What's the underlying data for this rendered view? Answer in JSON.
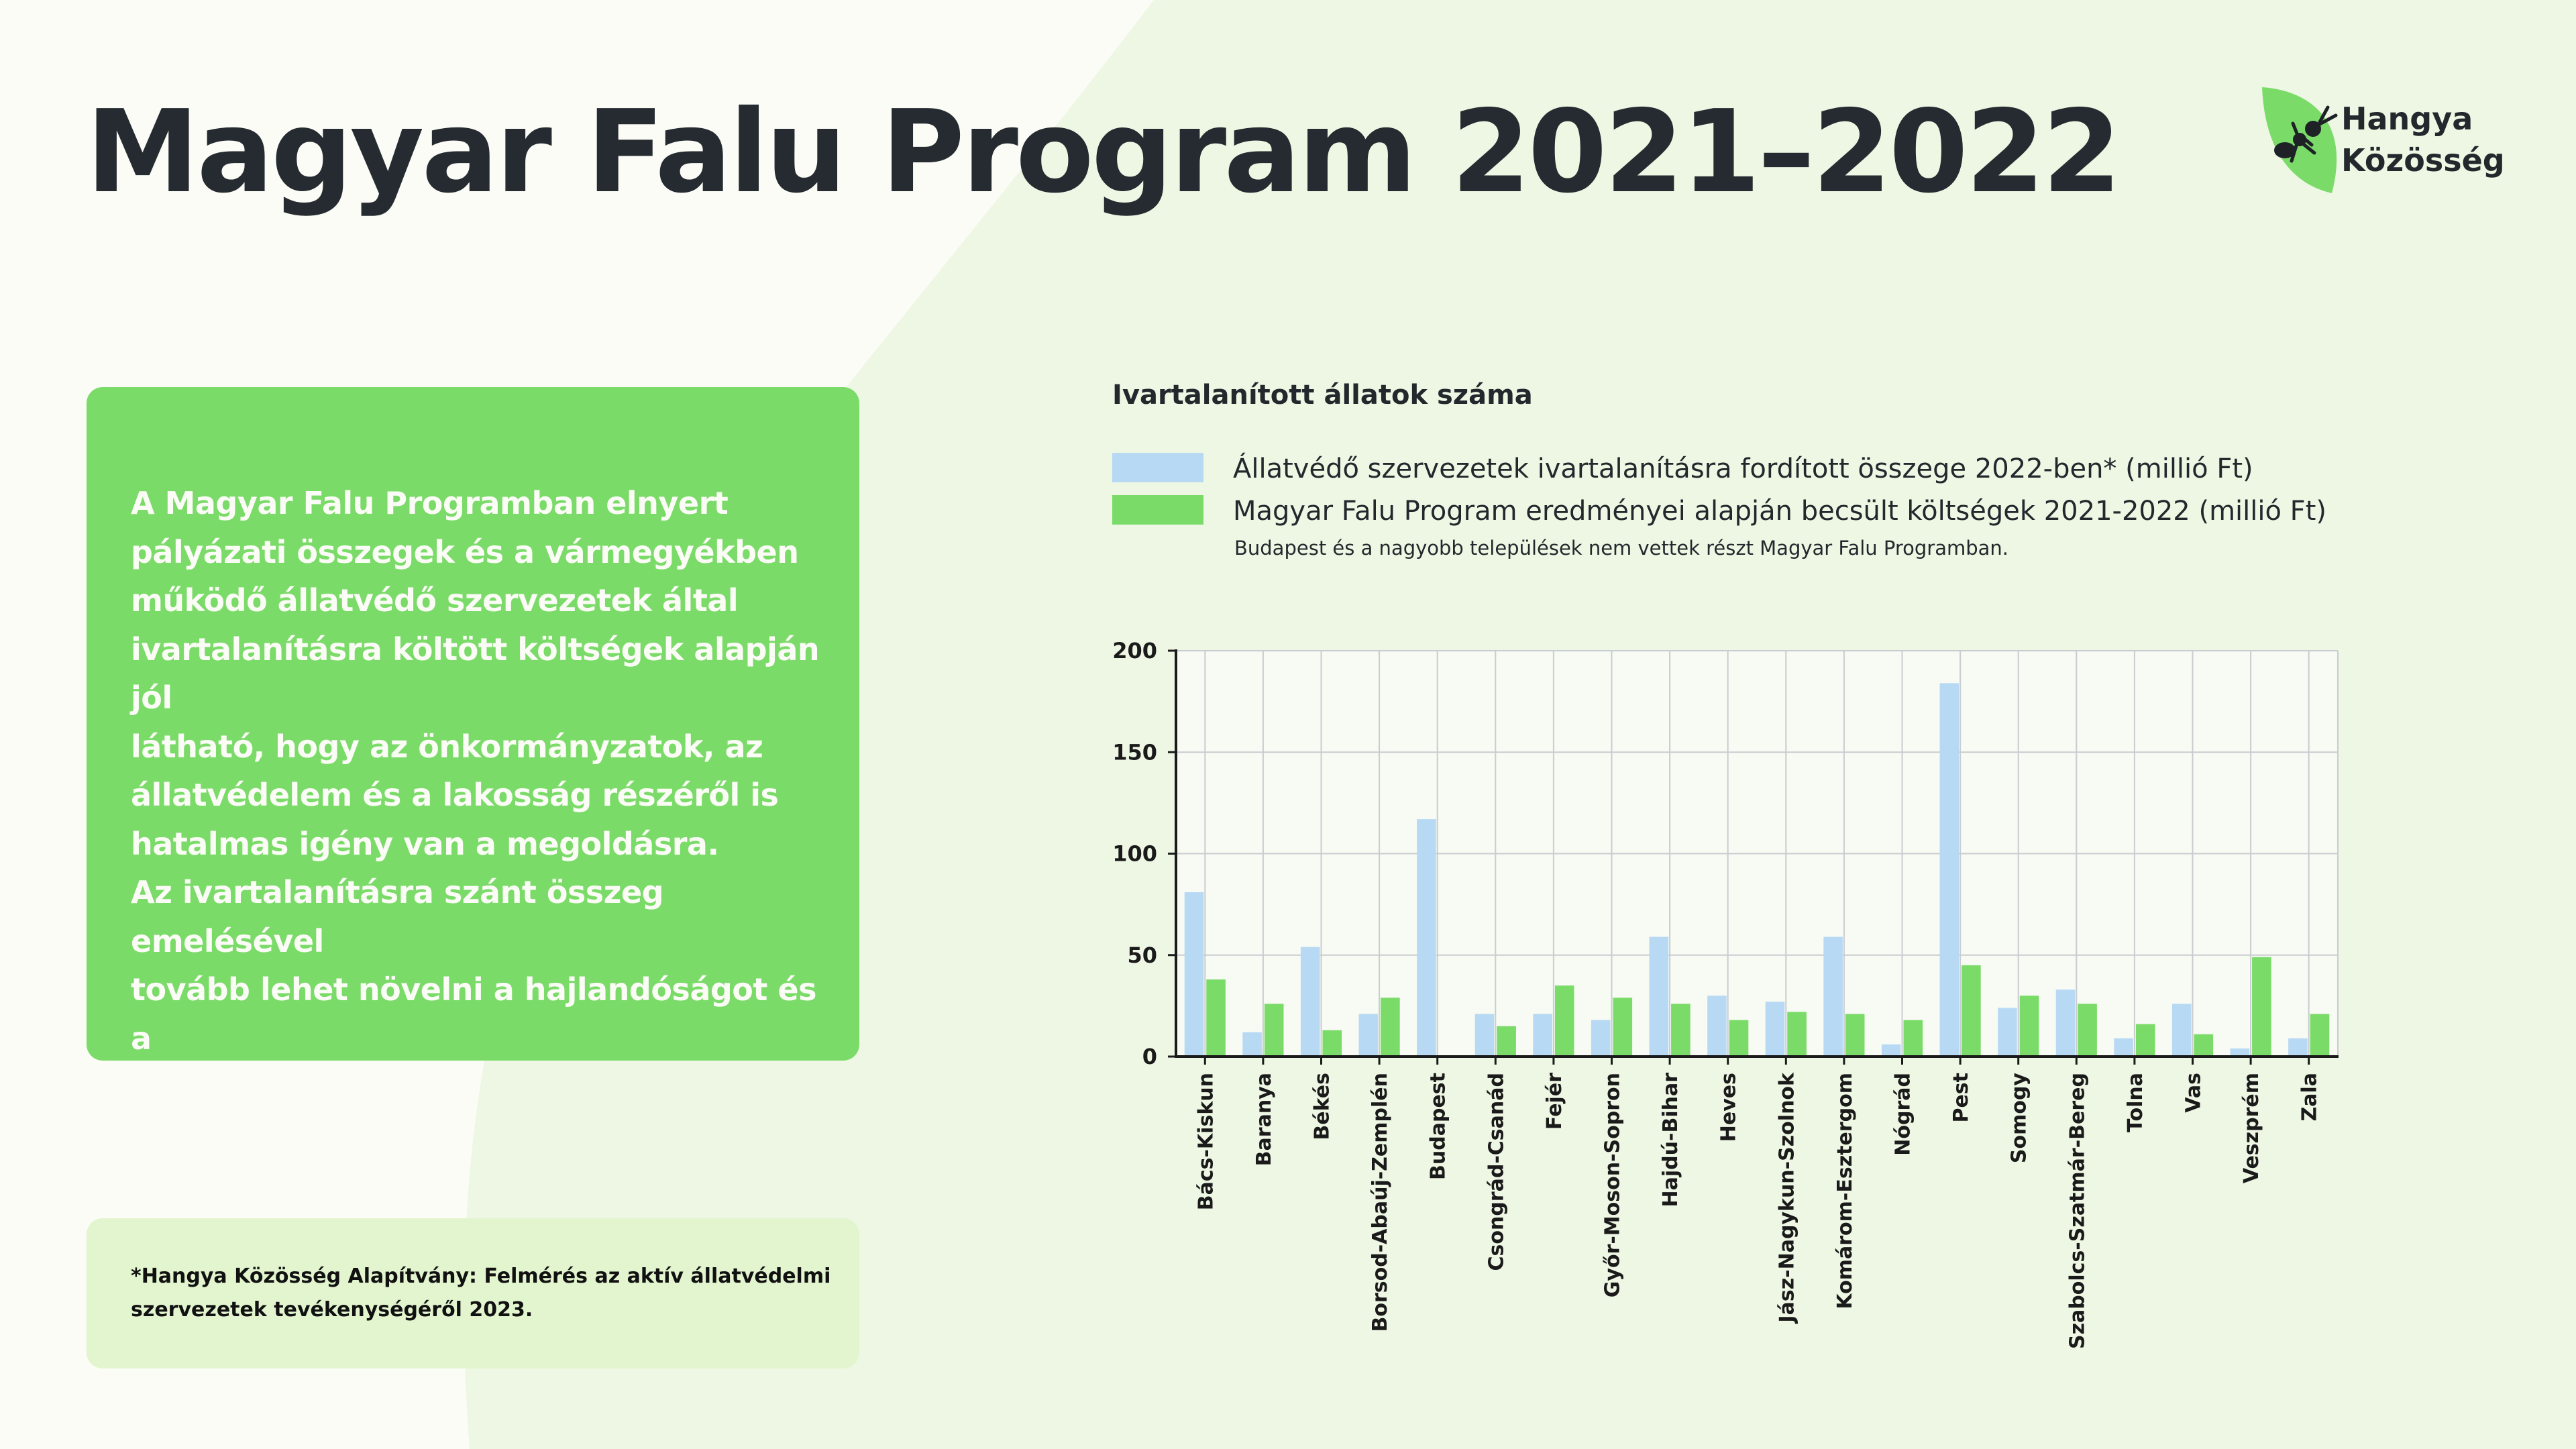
{
  "header": {
    "title": "Magyar Falu Program 2021–2022"
  },
  "logo": {
    "line1": "Hangya",
    "line2": "Közösség",
    "icon": "ant-leaf-icon",
    "color": "#7bdb69"
  },
  "card": {
    "text": "A Magyar Falu Programban elnyert\npályázati összegek és a vármegyékben\nműködő állatvédő szervezetek által\nivartalanításra költött költségek alapján jól\nlátható, hogy az önkormányzatok, az\nállatvédelem és a lakosság részéről is\nhatalmas igény van a megoldásra.\nAz ivartalanításra szánt összeg emelésével\ntovább lehet növelni a hajlandóságot és a\nhatékonyságot."
  },
  "footnote": {
    "text": "*Hangya Közösség Alapítvány: Felmérés az aktív állatvédelmi\nszervezetek tevékenységéről 2023."
  },
  "colors": {
    "accent_green": "#7bdb69",
    "light_blue": "#b8d9f4",
    "background": "#fbfcf6",
    "pale_green": "#e2f5cf"
  },
  "chart_data": {
    "type": "bar",
    "title": "Ivartalanított állatok száma",
    "note": "Budapest és a nagyobb települések nem vettek részt Magyar Falu Programban.",
    "categories": [
      "Bács-Kiskun",
      "Baranya",
      "Békés",
      "Borsod-Abaúj-Zemplén",
      "Budapest",
      "Csongrád-Csanád",
      "Fejér",
      "Győr-Moson-Sopron",
      "Hajdú-Bihar",
      "Heves",
      "Jász-Nagykun-Szolnok",
      "Komárom-Esztergom",
      "Nógrád",
      "Pest",
      "Somogy",
      "Szabolcs-Szatmár-Bereg",
      "Tolna",
      "Vas",
      "Veszprém",
      "Zala"
    ],
    "series": [
      {
        "name": "Állatvédő szervezetek ivartalanításra fordított összege 2022-ben* (millió Ft)",
        "color": "#b8d9f4",
        "values": [
          81,
          12,
          54,
          21,
          117,
          21,
          21,
          18,
          59,
          30,
          27,
          59,
          6,
          184,
          24,
          33,
          9,
          26,
          4,
          9
        ]
      },
      {
        "name": "Magyar Falu Program eredményei alapján becsült költségek 2021-2022 (millió Ft)",
        "color": "#7bdb69",
        "values": [
          38,
          26,
          13,
          29,
          0,
          15,
          35,
          29,
          26,
          18,
          22,
          21,
          18,
          45,
          30,
          26,
          16,
          11,
          49,
          21
        ]
      }
    ],
    "yticks": [
      0,
      50,
      100,
      150,
      200
    ],
    "ylim": [
      0,
      200
    ],
    "grid": true,
    "legend_position": "top"
  }
}
